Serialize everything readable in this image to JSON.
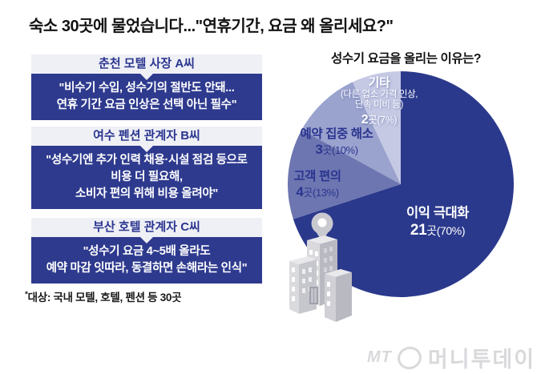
{
  "page_title": "숙소 30곳에 물었습니다...\"연휴기간, 요금 왜 올리세요?\"",
  "quotes": [
    {
      "speaker": "춘천 모텔 사장 A씨",
      "quote": "\"비수기 수입, 성수기의 절반도 안돼...\n연휴 기간 요금 인상은 선택 아닌 필수\""
    },
    {
      "speaker": "여수 펜션 관계자 B씨",
      "quote": "\"성수기엔 추가 인력 채용·시설 점검 등으로\n비용 더 필요해,\n소비자 편의 위해 비용 올려야\""
    },
    {
      "speaker": "부산 호텔 관계자 C씨",
      "quote": "\"성수기 요금 4~5배 올라도\n예약 마감 잇따라, 동결하면 손해라는 인식\""
    }
  ],
  "footnote_mark": "*",
  "footnote_text": "대상: 국내 모텔, 호텔, 펜션 등 30곳",
  "chart_data": {
    "type": "pie",
    "title": "성수기 요금을 올리는 이유는?",
    "unit": "곳",
    "total_responses": 30,
    "start_angle_deg": 0,
    "direction": "clockwise",
    "legend_position": "labels-on-slices",
    "slices": [
      {
        "label": "이익 극대화",
        "count": 21,
        "count_suffix": "곳(70%)",
        "percent": 70,
        "color": "#2b398c",
        "text_color": "#ffffff"
      },
      {
        "label": "고객 편의",
        "count": 4,
        "count_suffix": "곳(13%)",
        "percent": 13,
        "color": "#6d76b0",
        "text_color": "#2b3590"
      },
      {
        "label": "예약 집중 해소",
        "count": 3,
        "count_suffix": "곳(10%)",
        "percent": 10,
        "color": "#9aa2ce",
        "text_color": "#2b3590"
      },
      {
        "label": "기타",
        "sublabel": "(다른 업소 가격 인상,\n단속 미비 등)",
        "count": 2,
        "count_suffix": "곳(7%)",
        "percent": 7,
        "color": "#c5c9e4",
        "text_color": "#ffffff"
      }
    ]
  },
  "watermark": {
    "mt": "MT",
    "name": "머니투데이"
  },
  "colors": {
    "background": "#ffffff",
    "navy": "#2e3a8e",
    "quote_header_bg": "#eef0f5",
    "headline_text": "#121212",
    "watermark_gray": "#d9d9dc",
    "building_gray": "#c9c9d0"
  }
}
